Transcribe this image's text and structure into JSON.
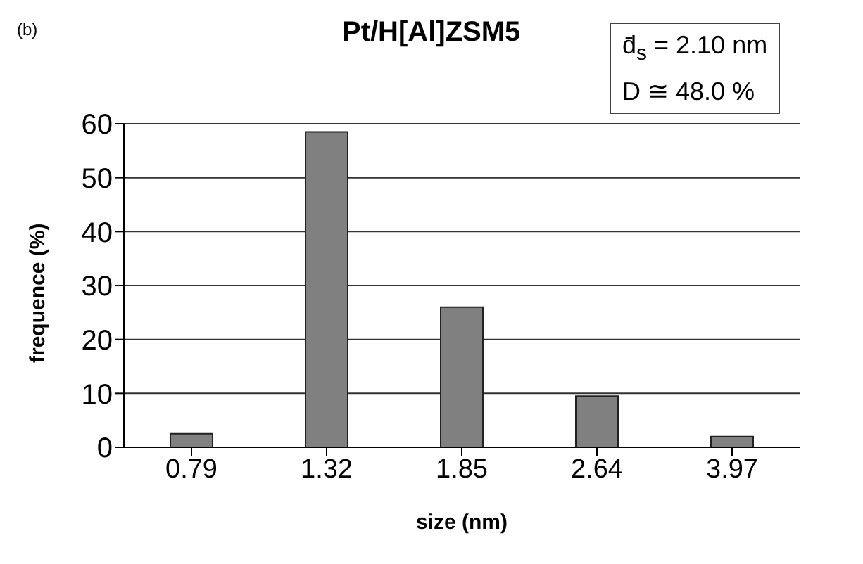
{
  "chart_data": {
    "type": "bar",
    "title": "Pt/H[Al]ZSM5",
    "xlabel": "size (nm)",
    "ylabel": "frequence (%)",
    "categories": [
      "0.79",
      "1.32",
      "1.85",
      "2.64",
      "3.97"
    ],
    "values": [
      2.5,
      58.5,
      26,
      9.5,
      2
    ],
    "color": "#808080",
    "ylim": [
      0,
      60
    ],
    "yticks": [
      0,
      10,
      20,
      30,
      40,
      50,
      60
    ],
    "grid": "y",
    "annotations": [
      "(b)",
      "d̄$_{s}$ = 2.10 nm",
      "D ≅ 48.0 %"
    ]
  }
}
